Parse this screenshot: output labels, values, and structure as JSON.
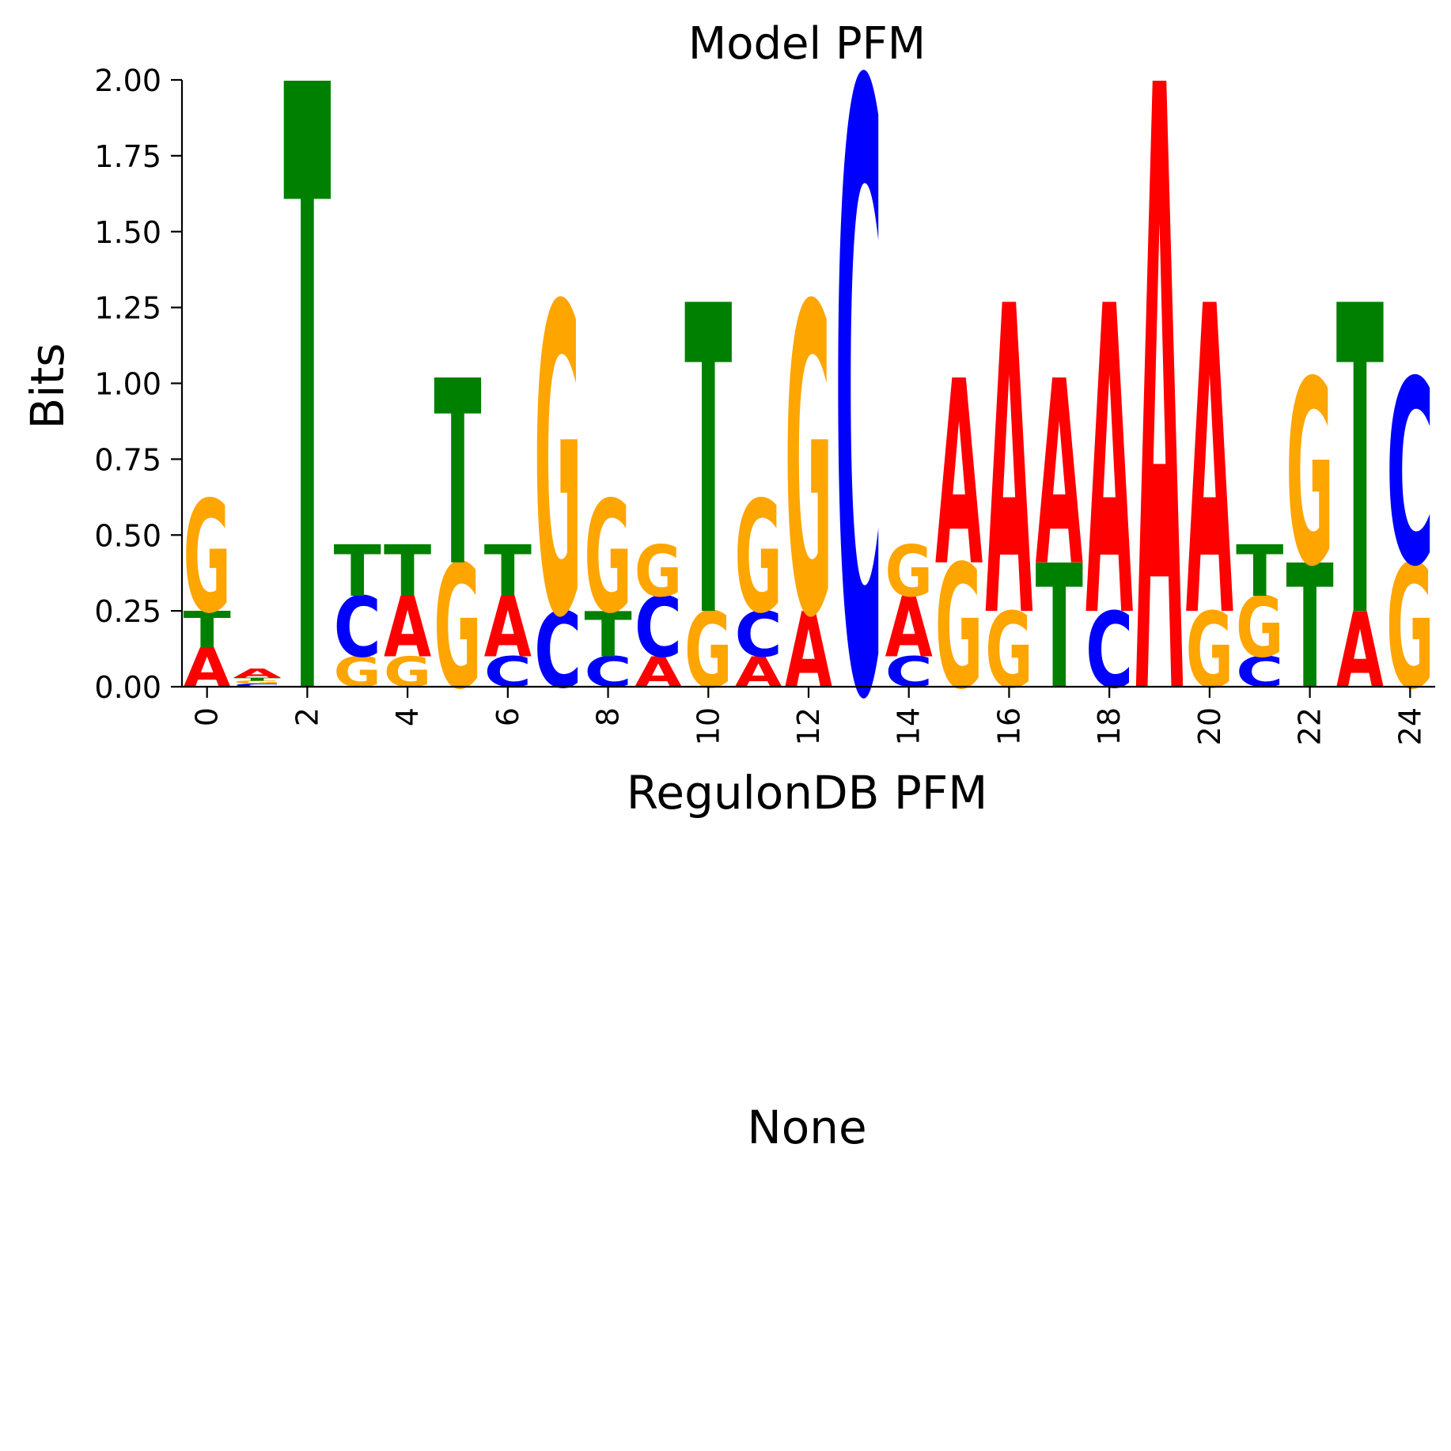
{
  "chart_data": {
    "type": "sequence_logo",
    "title": "Model PFM",
    "xlabel": "RegulonDB PFM",
    "ylabel": "Bits",
    "ylim": [
      0,
      2.0
    ],
    "xlim": [
      -0.5,
      24.5
    ],
    "yticks": [
      0,
      0.25,
      0.5,
      0.75,
      1.0,
      1.25,
      1.5,
      1.75,
      2.0
    ],
    "ytick_labels": [
      "0.00",
      "0.25",
      "0.50",
      "0.75",
      "1.00",
      "1.25",
      "1.50",
      "1.75",
      "2.00"
    ],
    "xticks": [
      0,
      2,
      4,
      6,
      8,
      10,
      12,
      14,
      16,
      18,
      20,
      22,
      24
    ],
    "xtick_labels": [
      "0",
      "2",
      "4",
      "6",
      "8",
      "10",
      "12",
      "14",
      "16",
      "18",
      "20",
      "22",
      "24"
    ],
    "colors": {
      "A": "#ff0000",
      "C": "#0000ff",
      "G": "#ffa500",
      "T": "#008000"
    },
    "positions": [
      [
        [
          "A",
          0.13
        ],
        [
          "T",
          0.12
        ],
        [
          "G",
          0.37
        ]
      ],
      [
        [
          "C",
          0.01
        ],
        [
          "G",
          0.01
        ],
        [
          "T",
          0.01
        ],
        [
          "A",
          0.03
        ]
      ],
      [
        [
          "T",
          2.0
        ]
      ],
      [
        [
          "G",
          0.1
        ],
        [
          "C",
          0.2
        ],
        [
          "T",
          0.17
        ]
      ],
      [
        [
          "G",
          0.1
        ],
        [
          "A",
          0.2
        ],
        [
          "T",
          0.17
        ]
      ],
      [
        [
          "G",
          0.41
        ],
        [
          "T",
          0.61
        ]
      ],
      [
        [
          "C",
          0.1
        ],
        [
          "A",
          0.2
        ],
        [
          "T",
          0.17
        ]
      ],
      [
        [
          "C",
          0.25
        ],
        [
          "G",
          1.02
        ]
      ],
      [
        [
          "C",
          0.1
        ],
        [
          "T",
          0.15
        ],
        [
          "G",
          0.37
        ]
      ],
      [
        [
          "A",
          0.1
        ],
        [
          "C",
          0.2
        ],
        [
          "G",
          0.17
        ]
      ],
      [
        [
          "G",
          0.25
        ],
        [
          "T",
          1.02
        ]
      ],
      [
        [
          "A",
          0.1
        ],
        [
          "C",
          0.15
        ],
        [
          "G",
          0.37
        ]
      ],
      [
        [
          "A",
          0.25
        ],
        [
          "G",
          1.02
        ]
      ],
      [
        [
          "C",
          2.0
        ]
      ],
      [
        [
          "C",
          0.1
        ],
        [
          "A",
          0.2
        ],
        [
          "G",
          0.17
        ]
      ],
      [
        [
          "G",
          0.41
        ],
        [
          "A",
          0.61
        ]
      ],
      [
        [
          "G",
          0.25
        ],
        [
          "A",
          1.02
        ]
      ],
      [
        [
          "T",
          0.41
        ],
        [
          "A",
          0.61
        ]
      ],
      [
        [
          "C",
          0.25
        ],
        [
          "A",
          1.02
        ]
      ],
      [
        [
          "A",
          2.0
        ]
      ],
      [
        [
          "G",
          0.25
        ],
        [
          "A",
          1.02
        ]
      ],
      [
        [
          "C",
          0.1
        ],
        [
          "G",
          0.2
        ],
        [
          "T",
          0.17
        ]
      ],
      [
        [
          "T",
          0.41
        ],
        [
          "G",
          0.61
        ]
      ],
      [
        [
          "A",
          0.25
        ],
        [
          "T",
          1.02
        ]
      ],
      [
        [
          "G",
          0.41
        ],
        [
          "C",
          0.61
        ]
      ]
    ]
  },
  "lower_panel": {
    "title": "None"
  }
}
